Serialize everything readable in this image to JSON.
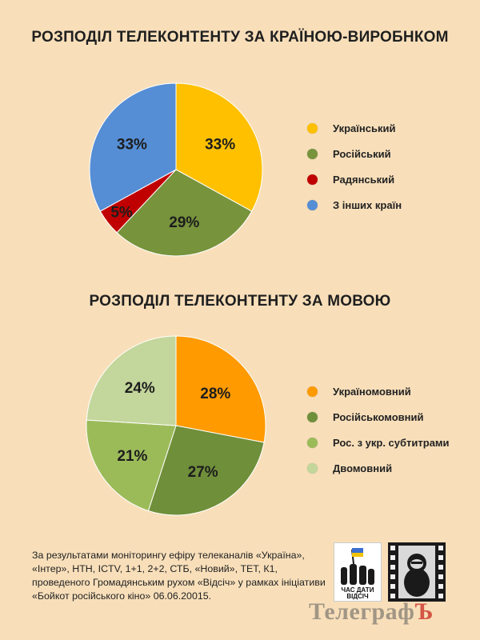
{
  "chart_data": [
    {
      "type": "pie",
      "title": "РОЗПОДІЛ ТЕЛЕКОНТЕНТУ ЗА КРАЇНОЮ-ВИРОБНКОМ",
      "categories": [
        "Український",
        "Російський",
        "Радянський",
        "З інших країн"
      ],
      "values": [
        33,
        29,
        5,
        33
      ],
      "labels": [
        "33%",
        "29%",
        "5%",
        "33%"
      ],
      "colors": [
        "#ffc000",
        "#77933c",
        "#c00000",
        "#558ed5"
      ],
      "legend_position": "right"
    },
    {
      "type": "pie",
      "title": "РОЗПОДІЛ ТЕЛЕКОНТЕНТУ ЗА МОВОЮ",
      "categories": [
        "Україномовний",
        "Російськомовний",
        "Рос. з укр. субтитрами",
        "Двомовний"
      ],
      "values": [
        28,
        27,
        21,
        24
      ],
      "labels": [
        "28%",
        "27%",
        "21%",
        "24%"
      ],
      "colors": [
        "#ff9a00",
        "#6f8f3a",
        "#9bbb59",
        "#c3d69b"
      ],
      "legend_position": "right"
    }
  ],
  "footnote": "За результатами моніторингу ефіру телеканалів «Україна», «Інтер», НТН, ICTV, 1+1, 2+2, СТБ, «Новий», ТЕТ, К1, проведеного Громадянським рухом «Відсіч» у рамках ініціативи «Бойкот російського кіно» 06.06.20015.",
  "logo": {
    "line1": "ЧАС ДАТИ",
    "line2": "ВІДСІЧ"
  },
  "watermark": {
    "main": "Телеграф",
    "accent": "Ъ"
  }
}
